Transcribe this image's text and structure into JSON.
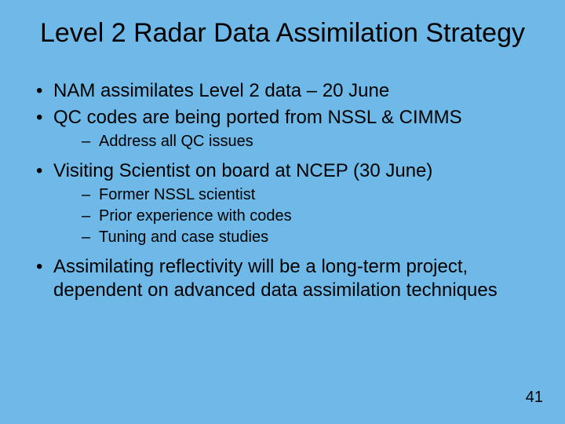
{
  "background_color": "#6fb9e8",
  "text_color": "#000000",
  "font_family": "Arial",
  "title": {
    "text": "Level 2 Radar Data Assimilation Strategy",
    "fontsize": 34
  },
  "bullets": {
    "fontsize_l1": 24,
    "fontsize_l2": 20,
    "items": [
      {
        "text": "NAM assimilates Level 2 data – 20 June"
      },
      {
        "text": "QC codes are being ported from NSSL & CIMMS",
        "sub": [
          "Address all QC issues"
        ]
      },
      {
        "text": "Visiting Scientist on board at NCEP (30 June)",
        "sub": [
          "Former NSSL scientist",
          "Prior experience with codes",
          "Tuning and case studies"
        ]
      },
      {
        "text": "Assimilating reflectivity will be a long-term project, dependent on advanced data assimilation techniques"
      }
    ]
  },
  "slide_number": "41"
}
